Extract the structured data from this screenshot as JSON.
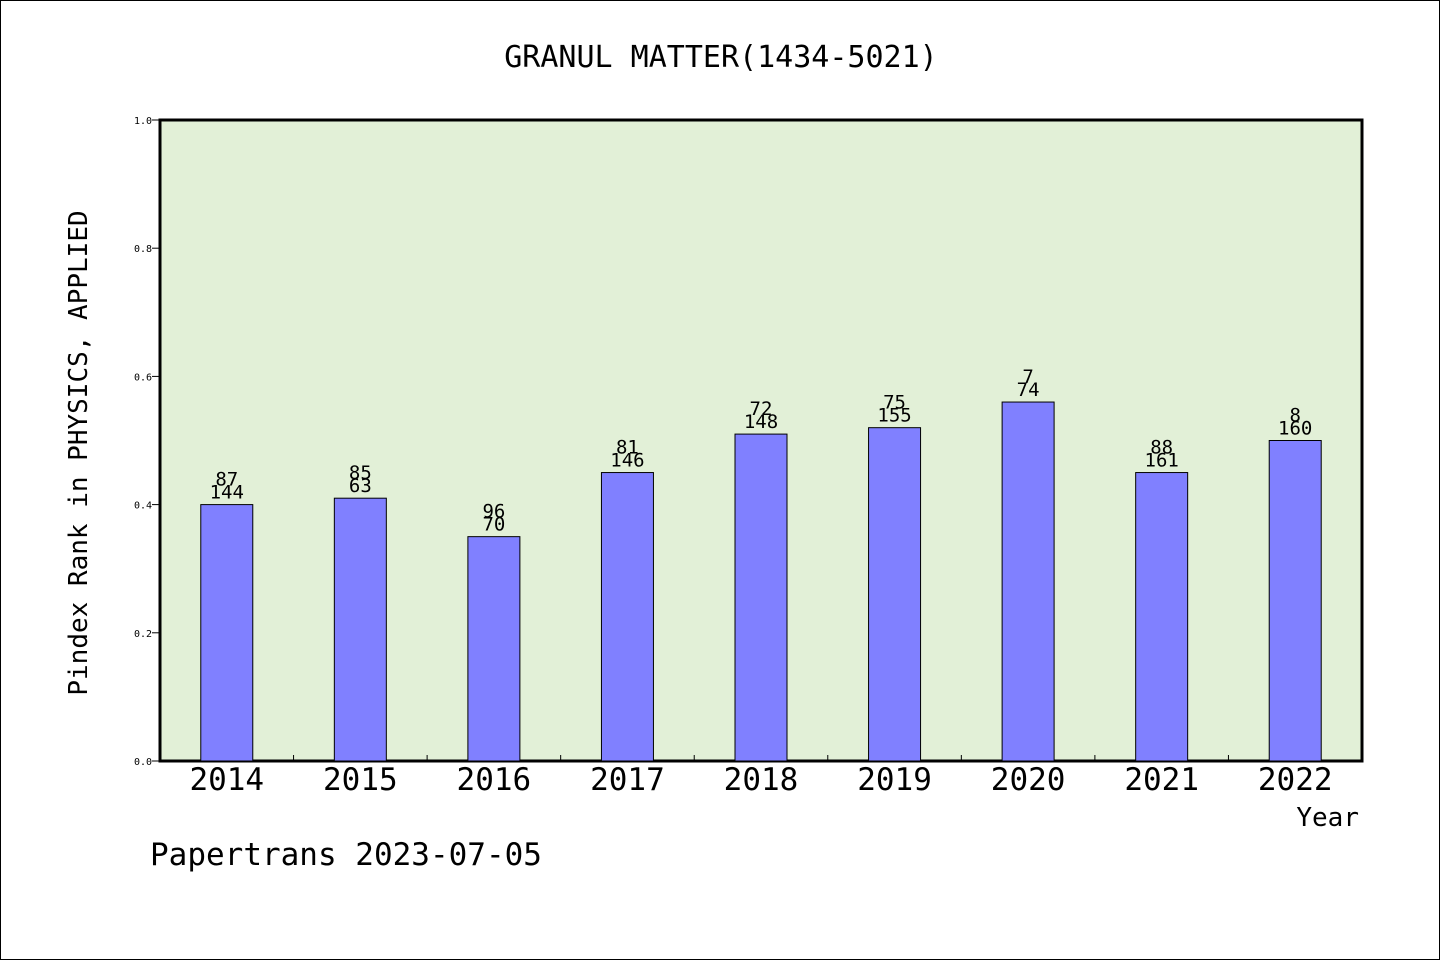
{
  "chart_data": {
    "type": "bar",
    "title": "GRANUL MATTER(1434-5021)",
    "xlabel": "Year",
    "ylabel": "Pindex Rank in PHYSICS, APPLIED",
    "ylim": [
      0,
      1.0
    ],
    "yticks": [
      "0.0",
      "0.2",
      "0.4",
      "0.6",
      "0.8",
      "1.0"
    ],
    "ytick_values": [
      0.0,
      0.2,
      0.4,
      0.6,
      0.8,
      1.0
    ],
    "categories": [
      "2014",
      "2015",
      "2016",
      "2017",
      "2018",
      "2019",
      "2020",
      "2021",
      "2022"
    ],
    "values": [
      0.4,
      0.41,
      0.35,
      0.45,
      0.51,
      0.52,
      0.56,
      0.45,
      0.5
    ],
    "bar_labels_top": [
      "87",
      "85",
      "96",
      "81",
      "72",
      "75",
      "7",
      "88",
      "8"
    ],
    "bar_labels_bottom": [
      "144",
      "63",
      "70",
      "146",
      "148",
      "155",
      "74",
      "161",
      "160"
    ],
    "bar_color": "#8080ff",
    "plot_background": "#e2f0d7",
    "grid": false,
    "legend": "none"
  },
  "footer": {
    "credit": "Papertrans 2023-07-05"
  }
}
